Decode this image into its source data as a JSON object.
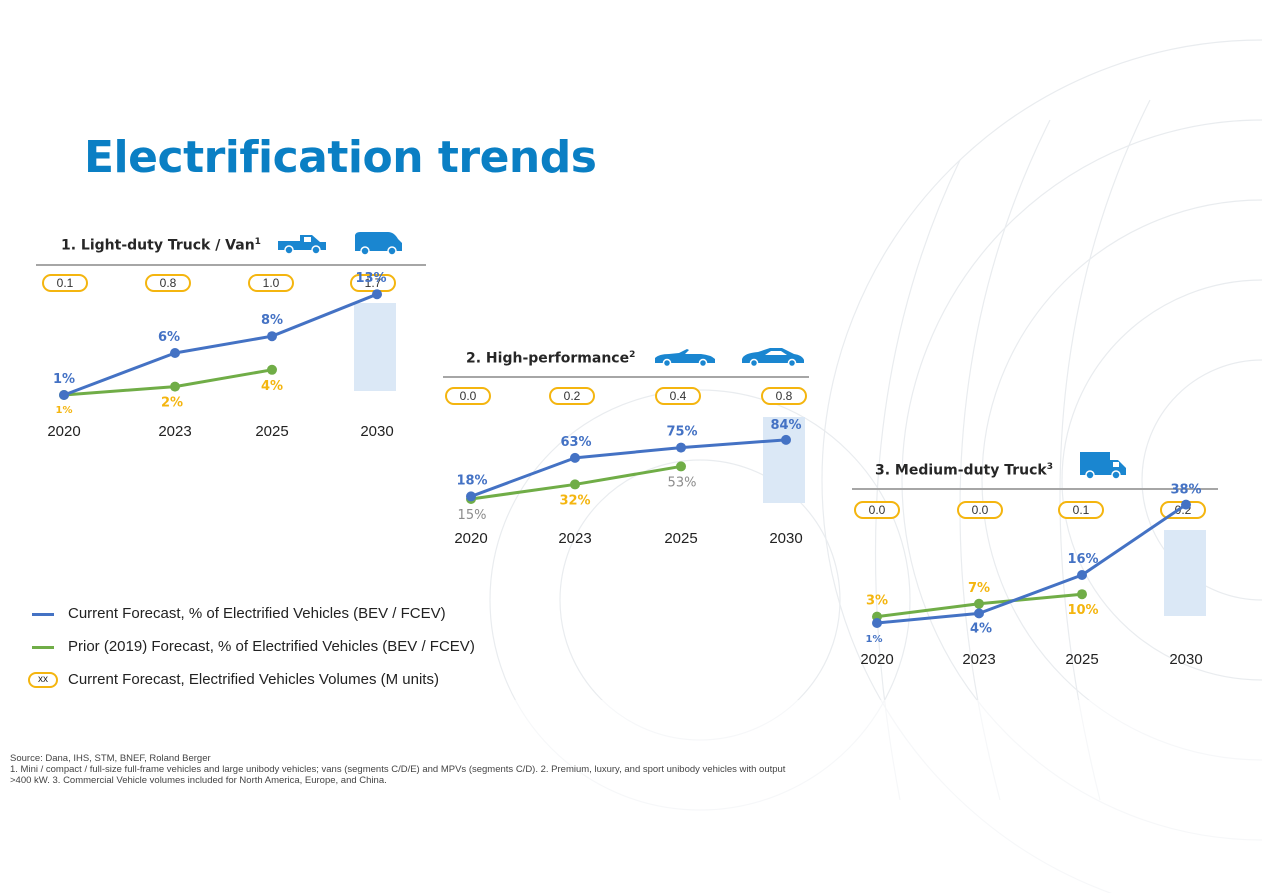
{
  "title": "Electrification trends",
  "colors": {
    "title": "#0a7fc4",
    "current": "#4472c4",
    "prior": "#70ad47",
    "pill_border": "#f4b50f",
    "prior_label": "#f4b50f",
    "highlight": "#dbe8f6",
    "icon": "#1a86d0"
  },
  "chart_data": [
    {
      "type": "line",
      "panel_title": "1. Light-duty Truck / Van",
      "panel_superscript": "1",
      "icons": [
        "pickup-truck-icon",
        "van-icon"
      ],
      "categories": [
        "2020",
        "2023",
        "2025",
        "2030"
      ],
      "volumes": [
        "0.1",
        "0.8",
        "1.0",
        "1.7"
      ],
      "series": [
        {
          "name": "Current Forecast, % of Electrified Vehicles (BEV / FCEV)",
          "values": [
            1,
            6,
            8,
            13
          ],
          "labels": [
            "1%",
            "6%",
            "8%",
            "13%"
          ]
        },
        {
          "name": "Prior (2019) Forecast, % of Electrified Vehicles (BEV / FCEV)",
          "values": [
            1,
            2,
            4,
            null
          ],
          "labels": [
            "1%",
            "2%",
            "4%",
            ""
          ]
        }
      ],
      "highlight_category": "2030"
    },
    {
      "type": "line",
      "panel_title": "2. High-performance",
      "panel_superscript": "2",
      "icons": [
        "convertible-car-icon",
        "sports-car-icon"
      ],
      "categories": [
        "2020",
        "2023",
        "2025",
        "2030"
      ],
      "volumes": [
        "0.0",
        "0.2",
        "0.4",
        "0.8"
      ],
      "series": [
        {
          "name": "Current Forecast, % of Electrified Vehicles (BEV / FCEV)",
          "values": [
            18,
            63,
            75,
            84
          ],
          "labels": [
            "18%",
            "63%",
            "75%",
            "84%"
          ]
        },
        {
          "name": "Prior (2019) Forecast, % of Electrified Vehicles (BEV / FCEV)",
          "values": [
            15,
            32,
            53,
            null
          ],
          "labels": [
            "15%",
            "32%",
            "53%",
            ""
          ]
        }
      ],
      "highlight_category": "2030"
    },
    {
      "type": "line",
      "panel_title": "3. Medium-duty Truck",
      "panel_superscript": "3",
      "icons": [
        "box-truck-icon"
      ],
      "categories": [
        "2020",
        "2023",
        "2025",
        "2030"
      ],
      "volumes": [
        "0.0",
        "0.0",
        "0.1",
        "0.2"
      ],
      "series": [
        {
          "name": "Current Forecast, % of Electrified Vehicles (BEV / FCEV)",
          "values": [
            1,
            4,
            16,
            38
          ],
          "labels": [
            "1%",
            "4%",
            "16%",
            "38%"
          ]
        },
        {
          "name": "Prior (2019) Forecast, % of Electrified Vehicles (BEV / FCEV)",
          "values": [
            3,
            7,
            10,
            null
          ],
          "labels": [
            "3%",
            "7%",
            "10%",
            ""
          ]
        }
      ],
      "highlight_category": "2030"
    }
  ],
  "legend": {
    "current": "Current Forecast, % of Electrified Vehicles (BEV / FCEV)",
    "prior": "Prior (2019) Forecast, % of Electrified Vehicles (BEV / FCEV)",
    "volumes_swatch": "xx",
    "volumes": "Current Forecast, Electrified Vehicles Volumes (M units)"
  },
  "footnotes": {
    "source": "Source: Dana, IHS, STM, BNEF, Roland Berger",
    "line1": "1. Mini / compact / full-size full-frame vehicles and large unibody vehicles; vans (segments C/D/E) and MPVs (segments C/D).  2.  Premium, luxury, and sport unibody vehicles with output",
    "line2": ">400 kW. 3. Commercial Vehicle volumes included for North America, Europe, and China."
  }
}
